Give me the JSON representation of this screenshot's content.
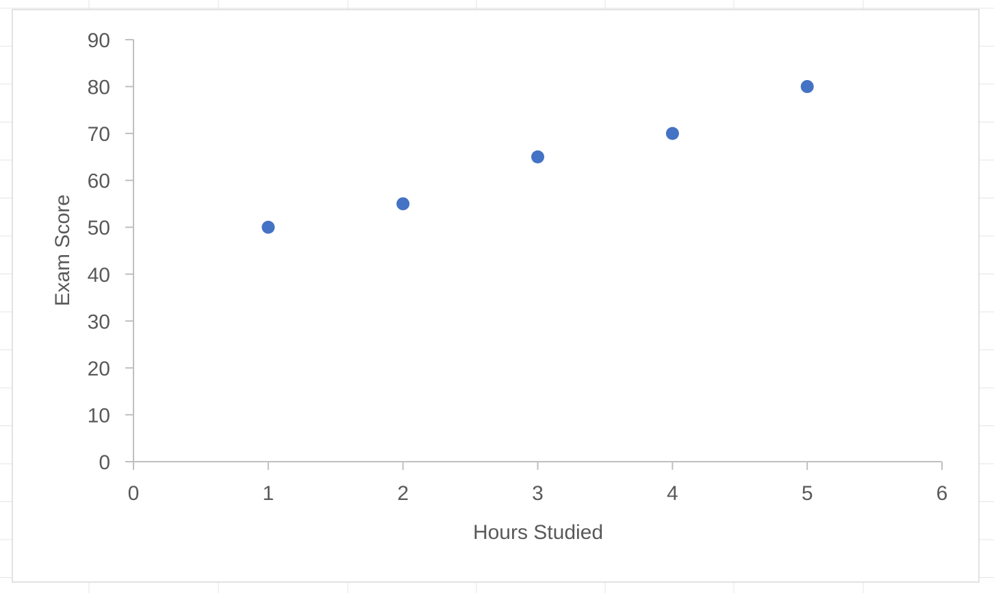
{
  "chart_data": {
    "type": "scatter",
    "title": "",
    "xlabel": "Hours Studied",
    "ylabel": "Exam Score",
    "xlim": [
      0,
      6
    ],
    "ylim": [
      0,
      90
    ],
    "x_ticks": [
      "0",
      "1",
      "2",
      "3",
      "4",
      "5",
      "6"
    ],
    "y_ticks": [
      "0",
      "10",
      "20",
      "30",
      "40",
      "50",
      "60",
      "70",
      "80",
      "90"
    ],
    "grid": false,
    "legend": "none",
    "series": [
      {
        "color": "#4472C4",
        "points": [
          {
            "x": 1,
            "y": 50
          },
          {
            "x": 2,
            "y": 55
          },
          {
            "x": 3,
            "y": 65
          },
          {
            "x": 4,
            "y": 70
          },
          {
            "x": 5,
            "y": 80
          }
        ]
      }
    ]
  }
}
